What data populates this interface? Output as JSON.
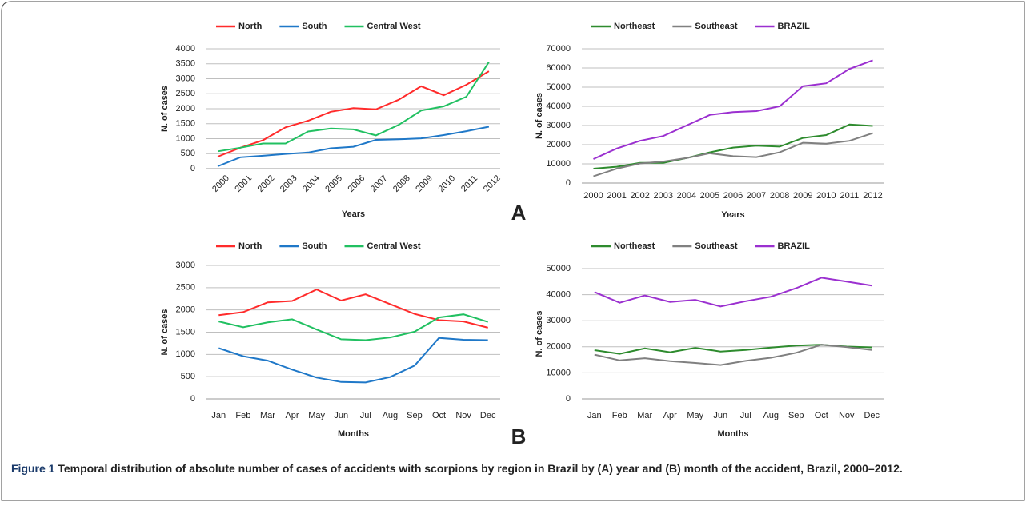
{
  "chart_data": [
    {
      "type": "line",
      "x_label": "Years",
      "y_label": "N. of cases",
      "categories": [
        "2000",
        "2001",
        "2002",
        "2003",
        "2004",
        "2005",
        "2006",
        "2007",
        "2008",
        "2009",
        "2010",
        "2011",
        "2012"
      ],
      "ylim": [
        0,
        4000
      ],
      "yticks": [
        0,
        500,
        1000,
        1500,
        2000,
        2500,
        3000,
        3500,
        4000
      ],
      "grid": true,
      "legend": "top",
      "series": [
        {
          "name": "North",
          "color": "#ff2b2b",
          "values": [
            400,
            700,
            950,
            1380,
            1600,
            1900,
            2020,
            1980,
            2300,
            2750,
            2450,
            2800,
            3250
          ]
        },
        {
          "name": "South",
          "color": "#1f78c8",
          "values": [
            80,
            380,
            430,
            490,
            540,
            680,
            730,
            960,
            980,
            1010,
            1120,
            1250,
            1400
          ]
        },
        {
          "name": "Central West",
          "color": "#21c061",
          "values": [
            580,
            700,
            840,
            840,
            1240,
            1340,
            1310,
            1110,
            1460,
            1940,
            2080,
            2400,
            3560
          ]
        }
      ]
    },
    {
      "type": "line",
      "x_label": "Years",
      "y_label": "N. of cases",
      "categories": [
        "2000",
        "2001",
        "2002",
        "2003",
        "2004",
        "2005",
        "2006",
        "2007",
        "2008",
        "2009",
        "2010",
        "2011",
        "2012"
      ],
      "ylim": [
        0,
        70000
      ],
      "yticks": [
        0,
        10000,
        20000,
        30000,
        40000,
        50000,
        60000,
        70000
      ],
      "grid": true,
      "legend": "top",
      "series": [
        {
          "name": "Northeast",
          "color": "#2e8b2e",
          "values": [
            7500,
            8500,
            10500,
            10500,
            13000,
            16000,
            18500,
            19500,
            19000,
            23500,
            25000,
            30500,
            29800
          ]
        },
        {
          "name": "Southeast",
          "color": "#808080",
          "values": [
            3500,
            7500,
            10200,
            11200,
            13000,
            15500,
            14000,
            13500,
            16000,
            21000,
            20500,
            22000,
            26000
          ]
        },
        {
          "name": "BRAZIL",
          "color": "#9b30d0",
          "values": [
            12500,
            18000,
            22000,
            24500,
            30000,
            35500,
            37000,
            37500,
            40000,
            50500,
            52000,
            59500,
            64000
          ]
        }
      ]
    },
    {
      "type": "line",
      "x_label": "Months",
      "y_label": "N. of cases",
      "categories": [
        "Jan",
        "Feb",
        "Mar",
        "Apr",
        "May",
        "Jun",
        "Jul",
        "Aug",
        "Sep",
        "Oct",
        "Nov",
        "Dec"
      ],
      "ylim": [
        0,
        3000
      ],
      "yticks": [
        0,
        500,
        1000,
        1500,
        2000,
        2500,
        3000
      ],
      "grid": true,
      "legend": "top",
      "series": [
        {
          "name": "North",
          "color": "#ff2b2b",
          "values": [
            1880,
            1950,
            2170,
            2200,
            2460,
            2210,
            2350,
            2130,
            1910,
            1770,
            1740,
            1600
          ]
        },
        {
          "name": "South",
          "color": "#1f78c8",
          "values": [
            1140,
            960,
            860,
            660,
            480,
            380,
            370,
            490,
            750,
            1370,
            1330,
            1320
          ]
        },
        {
          "name": "Central West",
          "color": "#21c061",
          "values": [
            1740,
            1610,
            1720,
            1790,
            1560,
            1340,
            1320,
            1380,
            1510,
            1830,
            1900,
            1730
          ]
        }
      ]
    },
    {
      "type": "line",
      "x_label": "Months",
      "y_label": "N. of cases",
      "categories": [
        "Jan",
        "Feb",
        "Mar",
        "Apr",
        "May",
        "Jun",
        "Jul",
        "Aug",
        "Sep",
        "Oct",
        "Nov",
        "Dec"
      ],
      "ylim": [
        0,
        50000
      ],
      "yticks": [
        0,
        10000,
        20000,
        30000,
        40000,
        50000
      ],
      "grid": true,
      "legend": "top",
      "series": [
        {
          "name": "Northeast",
          "color": "#2e8b2e",
          "values": [
            18700,
            17300,
            19400,
            17900,
            19600,
            18200,
            18800,
            19700,
            20500,
            20800,
            20100,
            19800
          ]
        },
        {
          "name": "Southeast",
          "color": "#808080",
          "values": [
            17000,
            14800,
            15600,
            14500,
            13800,
            13000,
            14600,
            15800,
            17700,
            20800,
            19900,
            18800
          ]
        },
        {
          "name": "BRAZIL",
          "color": "#9b30d0",
          "values": [
            41000,
            36900,
            39700,
            37200,
            38000,
            35500,
            37500,
            39200,
            42500,
            46500,
            45000,
            43500
          ]
        }
      ]
    }
  ],
  "panels": [
    "A",
    "B"
  ],
  "caption": {
    "label": "Figure 1",
    "text": "Temporal distribution of absolute number of cases of accidents with scorpions by region in Brazil by (A) year and (B) month of the accident, Brazil, 2000–2012."
  }
}
